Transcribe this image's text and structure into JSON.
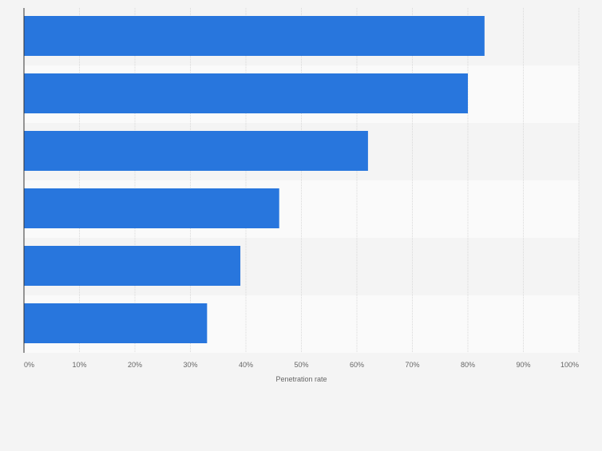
{
  "colors": {
    "background": "#f4f4f4",
    "band_light": "#fafafa",
    "band_dark": "#f4f4f4",
    "bar": "#2876dd",
    "grid": "#d9d9d9",
    "axis": "#333333",
    "tick_text": "#666666"
  },
  "chart_data": {
    "type": "bar",
    "orientation": "horizontal",
    "title": "",
    "xlabel": "Penetration rate",
    "ylabel": "",
    "categories": [
      "",
      "",
      "",
      "",
      "",
      ""
    ],
    "values": [
      83,
      80,
      62,
      46,
      39,
      33
    ],
    "unit": "%",
    "xlim": [
      0,
      100
    ],
    "xticks": [
      0,
      10,
      20,
      30,
      40,
      50,
      60,
      70,
      80,
      90,
      100
    ],
    "xtick_labels": [
      "0%",
      "10%",
      "20%",
      "30%",
      "40%",
      "50%",
      "60%",
      "70%",
      "80%",
      "90%",
      "100%"
    ],
    "grid": true,
    "legend": "none"
  }
}
